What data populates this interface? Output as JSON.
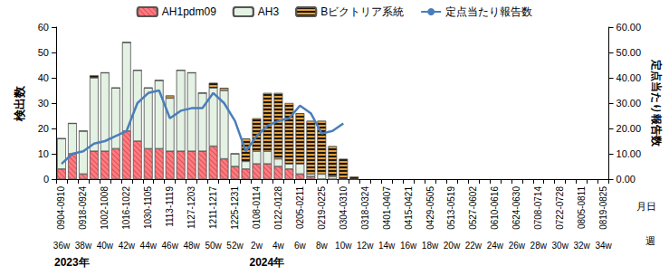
{
  "chart_data": {
    "type": "bar",
    "stacked": true,
    "legend": "top",
    "grid": false,
    "y_label": "検出数",
    "y2_label": "定点当たり報告数",
    "x_label": "月日",
    "x2_label": "週",
    "year_labels": [
      {
        "text": "2023年",
        "category": "0904-0910"
      },
      {
        "text": "2024年",
        "category": "0108-0114"
      }
    ],
    "categories": [
      "0904-0910",
      null,
      "0918-0924",
      null,
      "1002-1008",
      null,
      "1016-1022",
      null,
      "1030-1105",
      null,
      "1113-1119",
      null,
      "1127-1203",
      null,
      "1211-1217",
      null,
      "1225-1231",
      null,
      "0108-0114",
      null,
      "0122-0128",
      null,
      "0205-0211",
      null,
      "0219-0225",
      null,
      "0304-0310",
      null,
      "0318-0324",
      null,
      "0401-0407",
      null,
      "0415-0421",
      null,
      "0429-0505",
      null,
      "0513-0519",
      null,
      "0527-0602",
      null,
      "0610-0616",
      null,
      "0624-0630",
      null,
      "0708-0714",
      null,
      "0722-0728",
      null,
      "0805-0811",
      null,
      "0819-0825"
    ],
    "week_categories": [
      "36w",
      null,
      "38w",
      null,
      "40w",
      null,
      "42w",
      null,
      "44w",
      null,
      "46w",
      null,
      "48w",
      null,
      "50w",
      null,
      "52w",
      null,
      "2w",
      null,
      "4w",
      null,
      "6w",
      null,
      "8w",
      null,
      "10w",
      null,
      "12w",
      null,
      "14w",
      null,
      "16w",
      null,
      "18w",
      null,
      "20w",
      null,
      "22w",
      null,
      "24w",
      null,
      "26w",
      null,
      "28w",
      null,
      "30w",
      null,
      "32w",
      null,
      "34w"
    ],
    "ylim": [
      0,
      60
    ],
    "yticks": [
      0,
      10,
      20,
      30,
      40,
      50,
      60
    ],
    "y2lim": [
      0,
      60
    ],
    "y2ticks": [
      {
        "value": 0,
        "label": "0.00"
      },
      {
        "value": 10,
        "label": "10.00"
      },
      {
        "value": 20,
        "label": "20.00"
      },
      {
        "value": 30,
        "label": "30.00"
      },
      {
        "value": 40,
        "label": "40.00"
      },
      {
        "value": 50,
        "label": "50.00"
      },
      {
        "value": 60,
        "label": "60.00"
      }
    ],
    "series": [
      {
        "name": "AH1pdm09",
        "type": "bar",
        "color": "#ff7c80",
        "values": [
          4,
          10,
          2,
          11,
          11,
          12,
          19,
          15,
          12,
          12,
          11,
          11,
          11,
          11,
          13,
          8,
          5,
          4,
          6,
          6,
          5,
          4,
          2,
          1,
          0,
          0,
          0,
          0,
          null,
          null,
          null,
          null,
          null,
          null,
          null,
          null,
          null,
          null,
          null,
          null,
          null,
          null,
          null,
          null,
          null,
          null,
          null,
          null,
          null,
          null,
          null
        ]
      },
      {
        "name": "AH3",
        "type": "bar",
        "color": "#e4f2e4",
        "values": [
          12,
          12,
          17,
          29,
          31,
          24,
          35,
          28,
          24,
          27,
          21,
          32,
          31,
          23,
          23,
          27,
          5,
          3,
          5,
          5,
          3,
          2,
          4,
          1,
          2,
          1,
          0,
          0,
          null,
          null,
          null,
          null,
          null,
          null,
          null,
          null,
          null,
          null,
          null,
          null,
          null,
          null,
          null,
          null,
          null,
          null,
          null,
          null,
          null,
          null,
          null
        ]
      },
      {
        "name": "Bビクトリア系統",
        "type": "bar",
        "color": "#e0a040",
        "values": [
          0,
          0,
          0,
          1,
          0,
          0,
          0,
          0,
          0,
          0,
          1,
          0,
          0,
          0,
          2,
          1,
          0,
          9,
          13,
          23,
          26,
          24,
          20,
          21,
          21,
          12,
          8,
          1,
          null,
          null,
          null,
          null,
          null,
          null,
          null,
          null,
          null,
          null,
          null,
          null,
          null,
          null,
          null,
          null,
          null,
          null,
          null,
          null,
          null,
          null,
          null
        ]
      },
      {
        "name": "定点当たり報告数",
        "type": "line",
        "axis": "y2",
        "color": "#4a7ebb",
        "values": [
          6,
          10,
          11,
          14,
          15,
          17,
          19,
          30,
          34,
          35,
          24,
          27,
          28,
          28,
          34,
          30,
          23,
          11,
          17,
          21,
          23,
          24,
          29,
          26,
          18,
          19,
          22,
          null,
          null,
          null,
          null,
          null,
          null,
          null,
          null,
          null,
          null,
          null,
          null,
          null,
          null,
          null,
          null,
          null,
          null,
          null,
          null,
          null,
          null,
          null,
          null
        ]
      }
    ]
  }
}
